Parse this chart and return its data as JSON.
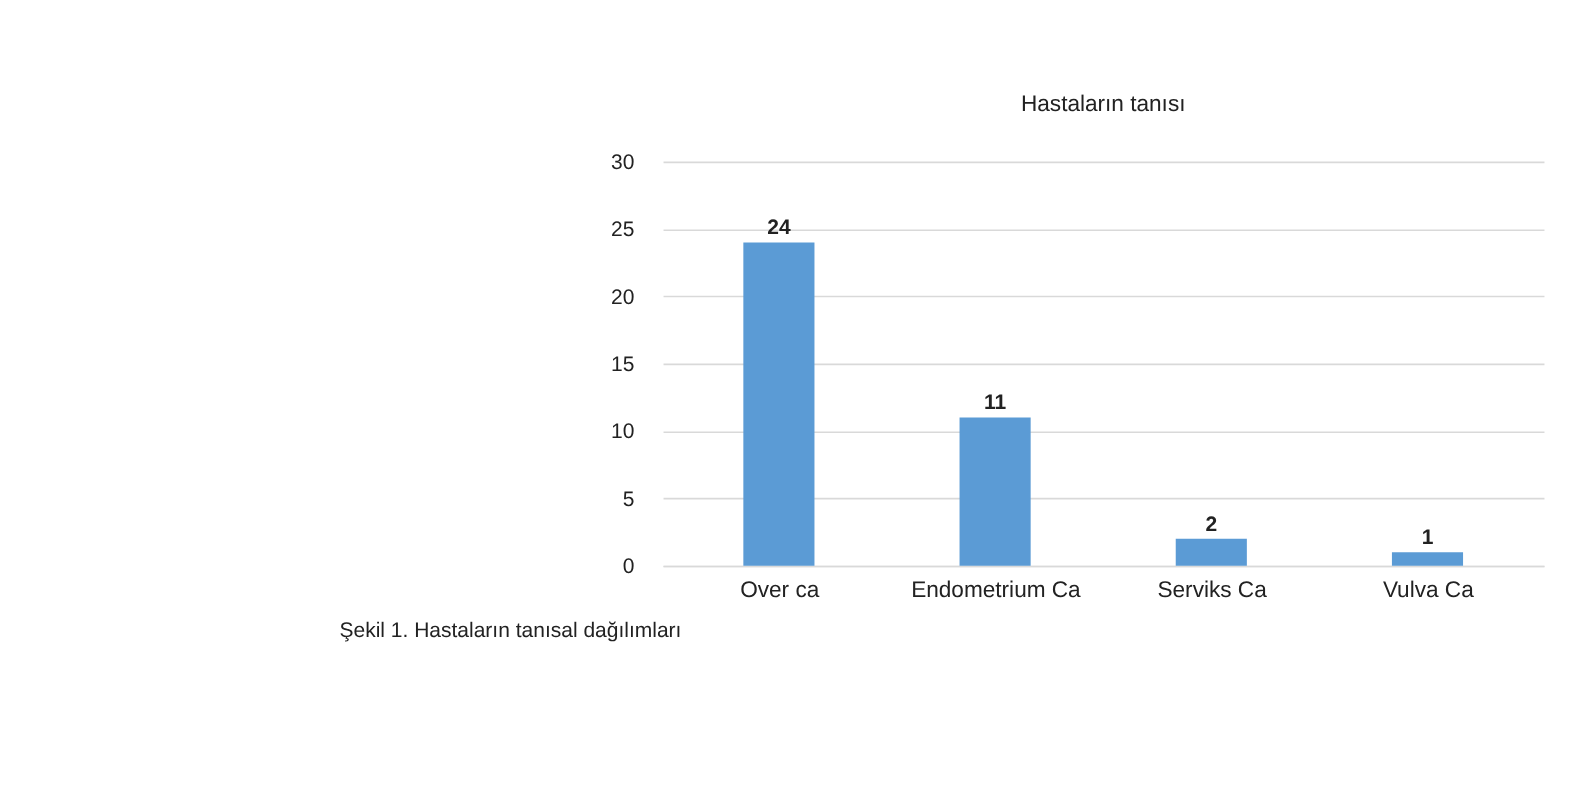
{
  "chart_data": {
    "type": "bar",
    "title": "Hastaların tanısı",
    "categories": [
      "Over ca",
      "Endometrium Ca",
      "Serviks Ca",
      "Vulva Ca"
    ],
    "values": [
      24,
      11,
      2,
      1
    ],
    "color": "#5b9bd5",
    "ylim": [
      0,
      30
    ],
    "yticks": [
      0,
      5,
      10,
      15,
      20,
      25,
      30
    ],
    "grid": "y",
    "data_labels": true,
    "annotations": [
      "Şekil 1. Hastaların tanısal dağılımları"
    ]
  }
}
